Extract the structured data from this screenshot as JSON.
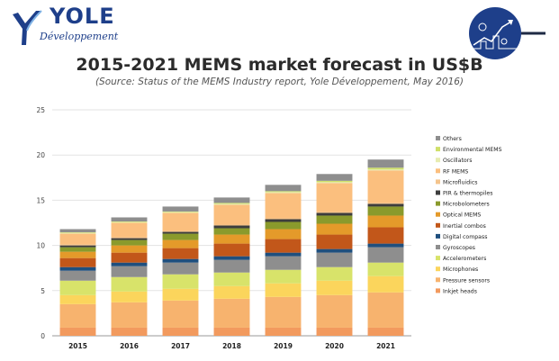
{
  "brand": {
    "name": "YOLE",
    "sub": "Développement"
  },
  "colors": {
    "brand": "#1e3f8a"
  },
  "chart_data": {
    "type": "bar",
    "stacked": true,
    "title": "2015-2021 MEMS market forecast in US$B",
    "subtitle": "(Source: Status of the MEMS Industry report, Yole Développement, May 2016)",
    "xlabel": "",
    "ylabel": "",
    "ylim": [
      0,
      25
    ],
    "yticks": [
      0,
      5,
      10,
      15,
      20,
      25
    ],
    "grid": true,
    "legend_position": "right",
    "categories": [
      "2015",
      "2016",
      "2017",
      "2018",
      "2019",
      "2020",
      "2021"
    ],
    "series": [
      {
        "name": "Inkjet heads",
        "color": "#f29a5e",
        "values": [
          0.9,
          0.9,
          0.9,
          0.9,
          0.9,
          0.9,
          0.9
        ]
      },
      {
        "name": "Pressure sensors",
        "color": "#f7b36e",
        "values": [
          2.6,
          2.8,
          3.0,
          3.2,
          3.4,
          3.6,
          3.9
        ]
      },
      {
        "name": "Microphones",
        "color": "#fbd55c",
        "values": [
          1.0,
          1.2,
          1.3,
          1.4,
          1.5,
          1.6,
          1.8
        ]
      },
      {
        "name": "Accelerometers",
        "color": "#d8e36a",
        "values": [
          1.6,
          1.6,
          1.6,
          1.5,
          1.5,
          1.5,
          1.5
        ]
      },
      {
        "name": "Gyroscopes",
        "color": "#8e8e8e",
        "values": [
          1.1,
          1.2,
          1.3,
          1.4,
          1.5,
          1.6,
          1.7
        ]
      },
      {
        "name": "Digital compass",
        "color": "#1f4f7e",
        "values": [
          0.4,
          0.4,
          0.4,
          0.4,
          0.4,
          0.4,
          0.4
        ]
      },
      {
        "name": "Inertial combos",
        "color": "#c2571a",
        "values": [
          1.0,
          1.1,
          1.2,
          1.4,
          1.5,
          1.6,
          1.8
        ]
      },
      {
        "name": "Optical MEMS",
        "color": "#e49a2a",
        "values": [
          0.7,
          0.8,
          0.9,
          1.0,
          1.1,
          1.2,
          1.3
        ]
      },
      {
        "name": "Microbolometers",
        "color": "#8a9a2c",
        "values": [
          0.5,
          0.6,
          0.7,
          0.7,
          0.8,
          0.9,
          1.0
        ]
      },
      {
        "name": "PIR & thermopiles",
        "color": "#3d3d3d",
        "values": [
          0.2,
          0.2,
          0.2,
          0.3,
          0.3,
          0.3,
          0.3
        ]
      },
      {
        "name": "Microfluidics",
        "color": "#f4c48c",
        "values": [
          0.1,
          0.1,
          0.1,
          0.1,
          0.1,
          0.1,
          0.1
        ]
      },
      {
        "name": "RF MEMS",
        "color": "#fbbf7e",
        "values": [
          1.2,
          1.6,
          2.0,
          2.2,
          2.8,
          3.2,
          3.6
        ]
      },
      {
        "name": "Oscillators",
        "color": "#e7ecb0",
        "values": [
          0.1,
          0.1,
          0.1,
          0.1,
          0.1,
          0.1,
          0.1
        ]
      },
      {
        "name": "Environmental MEMS",
        "color": "#cfe06a",
        "values": [
          0.05,
          0.05,
          0.05,
          0.1,
          0.1,
          0.15,
          0.2
        ]
      },
      {
        "name": "Others",
        "color": "#8e8e8e",
        "values": [
          0.35,
          0.45,
          0.55,
          0.6,
          0.7,
          0.75,
          0.9
        ]
      }
    ]
  }
}
